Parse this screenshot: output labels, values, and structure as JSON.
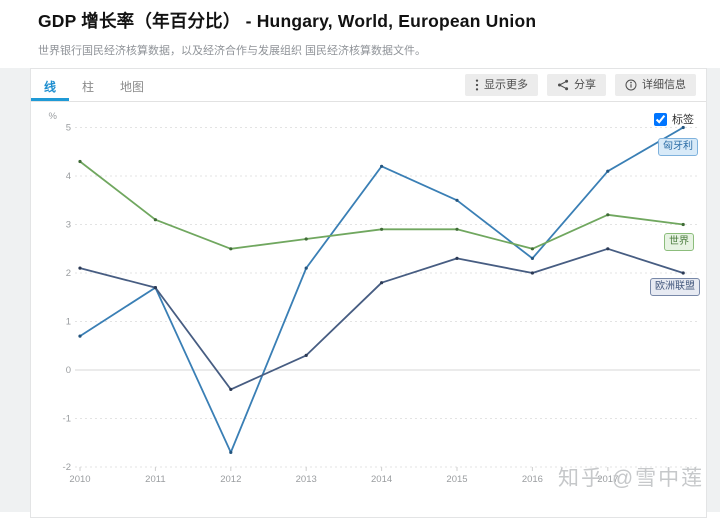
{
  "page": {
    "title": "GDP 增长率（年百分比） - Hungary, World, European Union",
    "subtitle": "世界银行国民经济核算数据，以及经济合作与发展组织 国民经济核算数据文件。",
    "watermark": "知乎 @雪中莲"
  },
  "tabs": [
    {
      "label": "线",
      "active": true
    },
    {
      "label": "柱",
      "active": false
    },
    {
      "label": "地图",
      "active": false
    }
  ],
  "toolbar": {
    "more_label": "显示更多",
    "share_label": "分享",
    "details_label": "详细信息"
  },
  "legend_toggle": {
    "label": "标签",
    "checked": true
  },
  "series_labels": {
    "hungary": "匈牙利",
    "world": "世界",
    "eu": "欧洲联盟"
  },
  "accent_color": "#1f8fd0",
  "chart_data": {
    "type": "line",
    "title": "GDP 增长率（年百分比） - Hungary, World, European Union",
    "x": [
      2010,
      2011,
      2012,
      2013,
      2014,
      2015,
      2016,
      2017,
      2018
    ],
    "x_labels_shown": [
      "2010",
      "2011",
      "2012",
      "2013",
      "2014",
      "2015",
      "2016",
      "2017"
    ],
    "series": [
      {
        "name": "匈牙利",
        "color": "#3a7fb5",
        "dot_color": "#24557e",
        "values": [
          0.7,
          1.7,
          -1.7,
          2.1,
          4.2,
          3.5,
          2.3,
          4.1,
          5.0
        ]
      },
      {
        "name": "世界",
        "color": "#70a75f",
        "dot_color": "#3f6b36",
        "values": [
          4.3,
          3.1,
          2.5,
          2.7,
          2.9,
          2.9,
          2.5,
          3.2,
          3.0
        ]
      },
      {
        "name": "欧洲联盟",
        "color": "#475d82",
        "dot_color": "#2c3a55",
        "values": [
          2.1,
          1.7,
          -0.4,
          0.3,
          1.8,
          2.3,
          2.0,
          2.5,
          2.0
        ]
      }
    ],
    "ylabel": "%",
    "yticks": [
      5,
      4,
      3,
      2,
      1,
      0,
      -1,
      -2
    ],
    "ylim": [
      -2,
      5
    ],
    "grid": "dashed horizontal, solid zero line",
    "legend_position": "inline labels at line ends"
  }
}
